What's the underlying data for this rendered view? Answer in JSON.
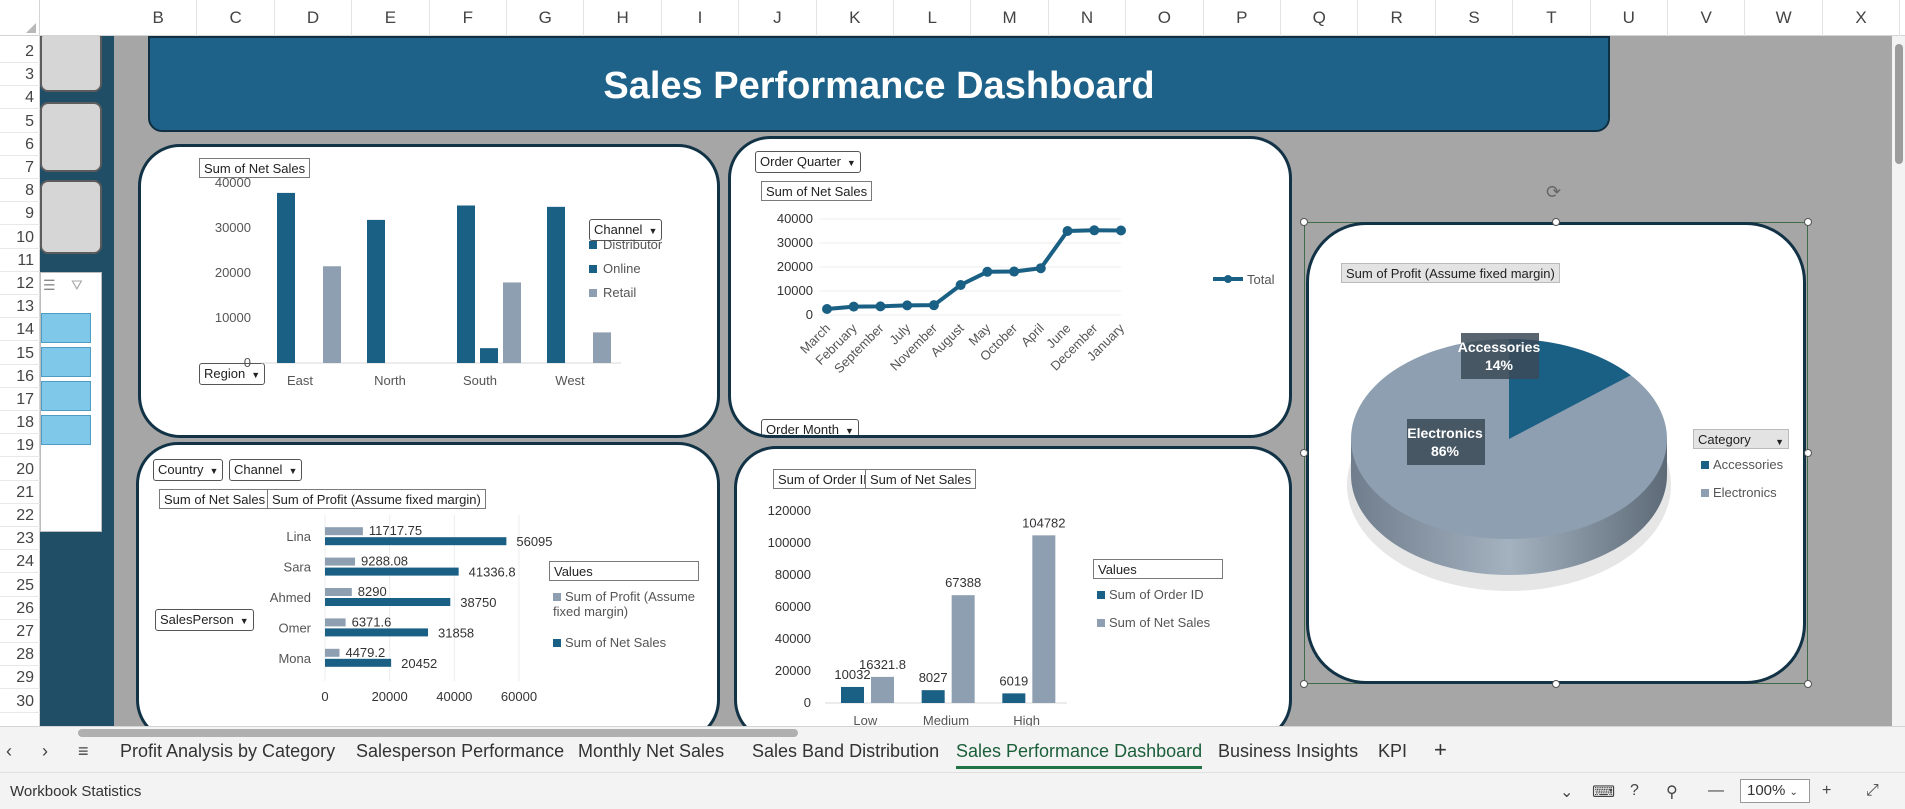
{
  "columns": [
    "B",
    "C",
    "D",
    "E",
    "F",
    "G",
    "H",
    "I",
    "J",
    "K",
    "L",
    "M",
    "N",
    "O",
    "P",
    "Q",
    "R",
    "S",
    "T",
    "U",
    "V",
    "W",
    "X"
  ],
  "rows": [
    "2",
    "3",
    "4",
    "5",
    "6",
    "7",
    "8",
    "9",
    "10",
    "11",
    "12",
    "13",
    "14",
    "15",
    "16",
    "17",
    "18",
    "19",
    "20",
    "21",
    "22",
    "23",
    "24",
    "25",
    "26",
    "27",
    "28",
    "29",
    "30"
  ],
  "dashboard_title": "Sales Performance Dashboard",
  "chart1": {
    "label": "Sum of Net Sales",
    "filter_region": "Region",
    "filter_channel": "Channel",
    "chart_data": {
      "type": "bar",
      "categories": [
        "East",
        "North",
        "South",
        "West"
      ],
      "series": [
        {
          "name": "Distributor",
          "values": [
            37800,
            31800,
            35000,
            34700
          ]
        },
        {
          "name": "Online",
          "values": [
            0,
            0,
            3300,
            0
          ]
        },
        {
          "name": "Retail",
          "values": [
            21500,
            0,
            17900,
            6800
          ]
        }
      ],
      "yticks": [
        "0",
        "10000",
        "20000",
        "30000",
        "40000"
      ],
      "ylim": [
        0,
        40000
      ]
    }
  },
  "chart2": {
    "filter_quarter": "Order Quarter",
    "label": "Sum of Net Sales",
    "filter_month": "Order Month",
    "legend": "Total",
    "chart_data": {
      "type": "line",
      "categories": [
        "March",
        "February",
        "September",
        "July",
        "November",
        "August",
        "May",
        "October",
        "April",
        "June",
        "December",
        "January"
      ],
      "series": [
        {
          "name": "Total",
          "values": [
            2500,
            3500,
            3600,
            4000,
            4100,
            12500,
            18000,
            18100,
            19500,
            35000,
            35300,
            35200
          ]
        }
      ],
      "yticks": [
        "0",
        "10000",
        "20000",
        "30000",
        "40000"
      ],
      "ylim": [
        0,
        40000
      ]
    }
  },
  "chart3": {
    "filter_country": "Country",
    "filter_channel": "Channel",
    "label_sales": "Sum of Net Sales",
    "label_profit": "Sum of Profit (Assume fixed margin)",
    "filter_salesperson": "SalesPerson",
    "legend_title": "Values",
    "legend_profit": "Sum of Profit (Assume fixed margin)",
    "legend_sales": "Sum of Net Sales",
    "chart_data": {
      "type": "bar",
      "orientation": "horizontal",
      "categories": [
        "Lina",
        "Sara",
        "Ahmed",
        "Omer",
        "Mona"
      ],
      "series": [
        {
          "name": "Sum of Profit (Assume fixed margin)",
          "values": [
            11717.75,
            9288.08,
            8290,
            6371.6,
            4479.2
          ],
          "labels": [
            "11717.75",
            "9288.08",
            "8290",
            "6371.6",
            "4479.2"
          ]
        },
        {
          "name": "Sum of Net Sales",
          "values": [
            56095,
            41336.8,
            38750,
            31858,
            20452
          ],
          "labels": [
            "56095",
            "41336.8",
            "38750",
            "31858",
            "20452"
          ]
        }
      ],
      "xticks": [
        "0",
        "20000",
        "40000",
        "60000"
      ],
      "xlim": [
        0,
        60000
      ]
    }
  },
  "chart4": {
    "label_orders": "Sum of Order ID",
    "label_sales": "Sum of Net Sales",
    "legend_title": "Values",
    "legend_orders": "Sum of Order ID",
    "legend_sales": "Sum of Net Sales",
    "chart_data": {
      "type": "bar",
      "categories": [
        "Low",
        "Medium",
        "High"
      ],
      "series": [
        {
          "name": "Sum of Order ID",
          "values": [
            10032,
            8027,
            6019
          ],
          "labels": [
            "10032",
            "8027",
            "6019"
          ]
        },
        {
          "name": "Sum of Net Sales",
          "values": [
            16321.8,
            67388,
            104782
          ],
          "labels": [
            "16321.8",
            "67388",
            "104782"
          ]
        }
      ],
      "yticks": [
        "0",
        "20000",
        "40000",
        "60000",
        "80000",
        "100000",
        "120000"
      ],
      "ylim": [
        0,
        120000
      ]
    }
  },
  "chart5": {
    "label": "Sum of Profit (Assume fixed margin)",
    "legend_title": "Category",
    "legend_items": [
      "Accessories",
      "Electronics"
    ],
    "chart_data": {
      "type": "pie",
      "categories": [
        "Accessories",
        "Electronics"
      ],
      "values": [
        14,
        86
      ],
      "labels": [
        {
          "name": "Accessories",
          "pct": "14%"
        },
        {
          "name": "Electronics",
          "pct": "86%"
        }
      ]
    }
  },
  "colors": {
    "dark": "#1a5f84",
    "gray": "#8e9fb1",
    "panel_border": "#123246",
    "title_bg": "#1e6189"
  },
  "tabs": [
    "Profit Analysis by Category",
    "Salesperson Performance",
    "Monthly Net Sales",
    "Sales Band Distribution",
    "Sales Performance Dashboard",
    "Business Insights",
    "KPI"
  ],
  "active_tab": "Sales Performance Dashboard",
  "add_tab": "+",
  "status": {
    "left": "Workbook Statistics",
    "zoom": "100%",
    "minus": "—",
    "plus": "+"
  }
}
